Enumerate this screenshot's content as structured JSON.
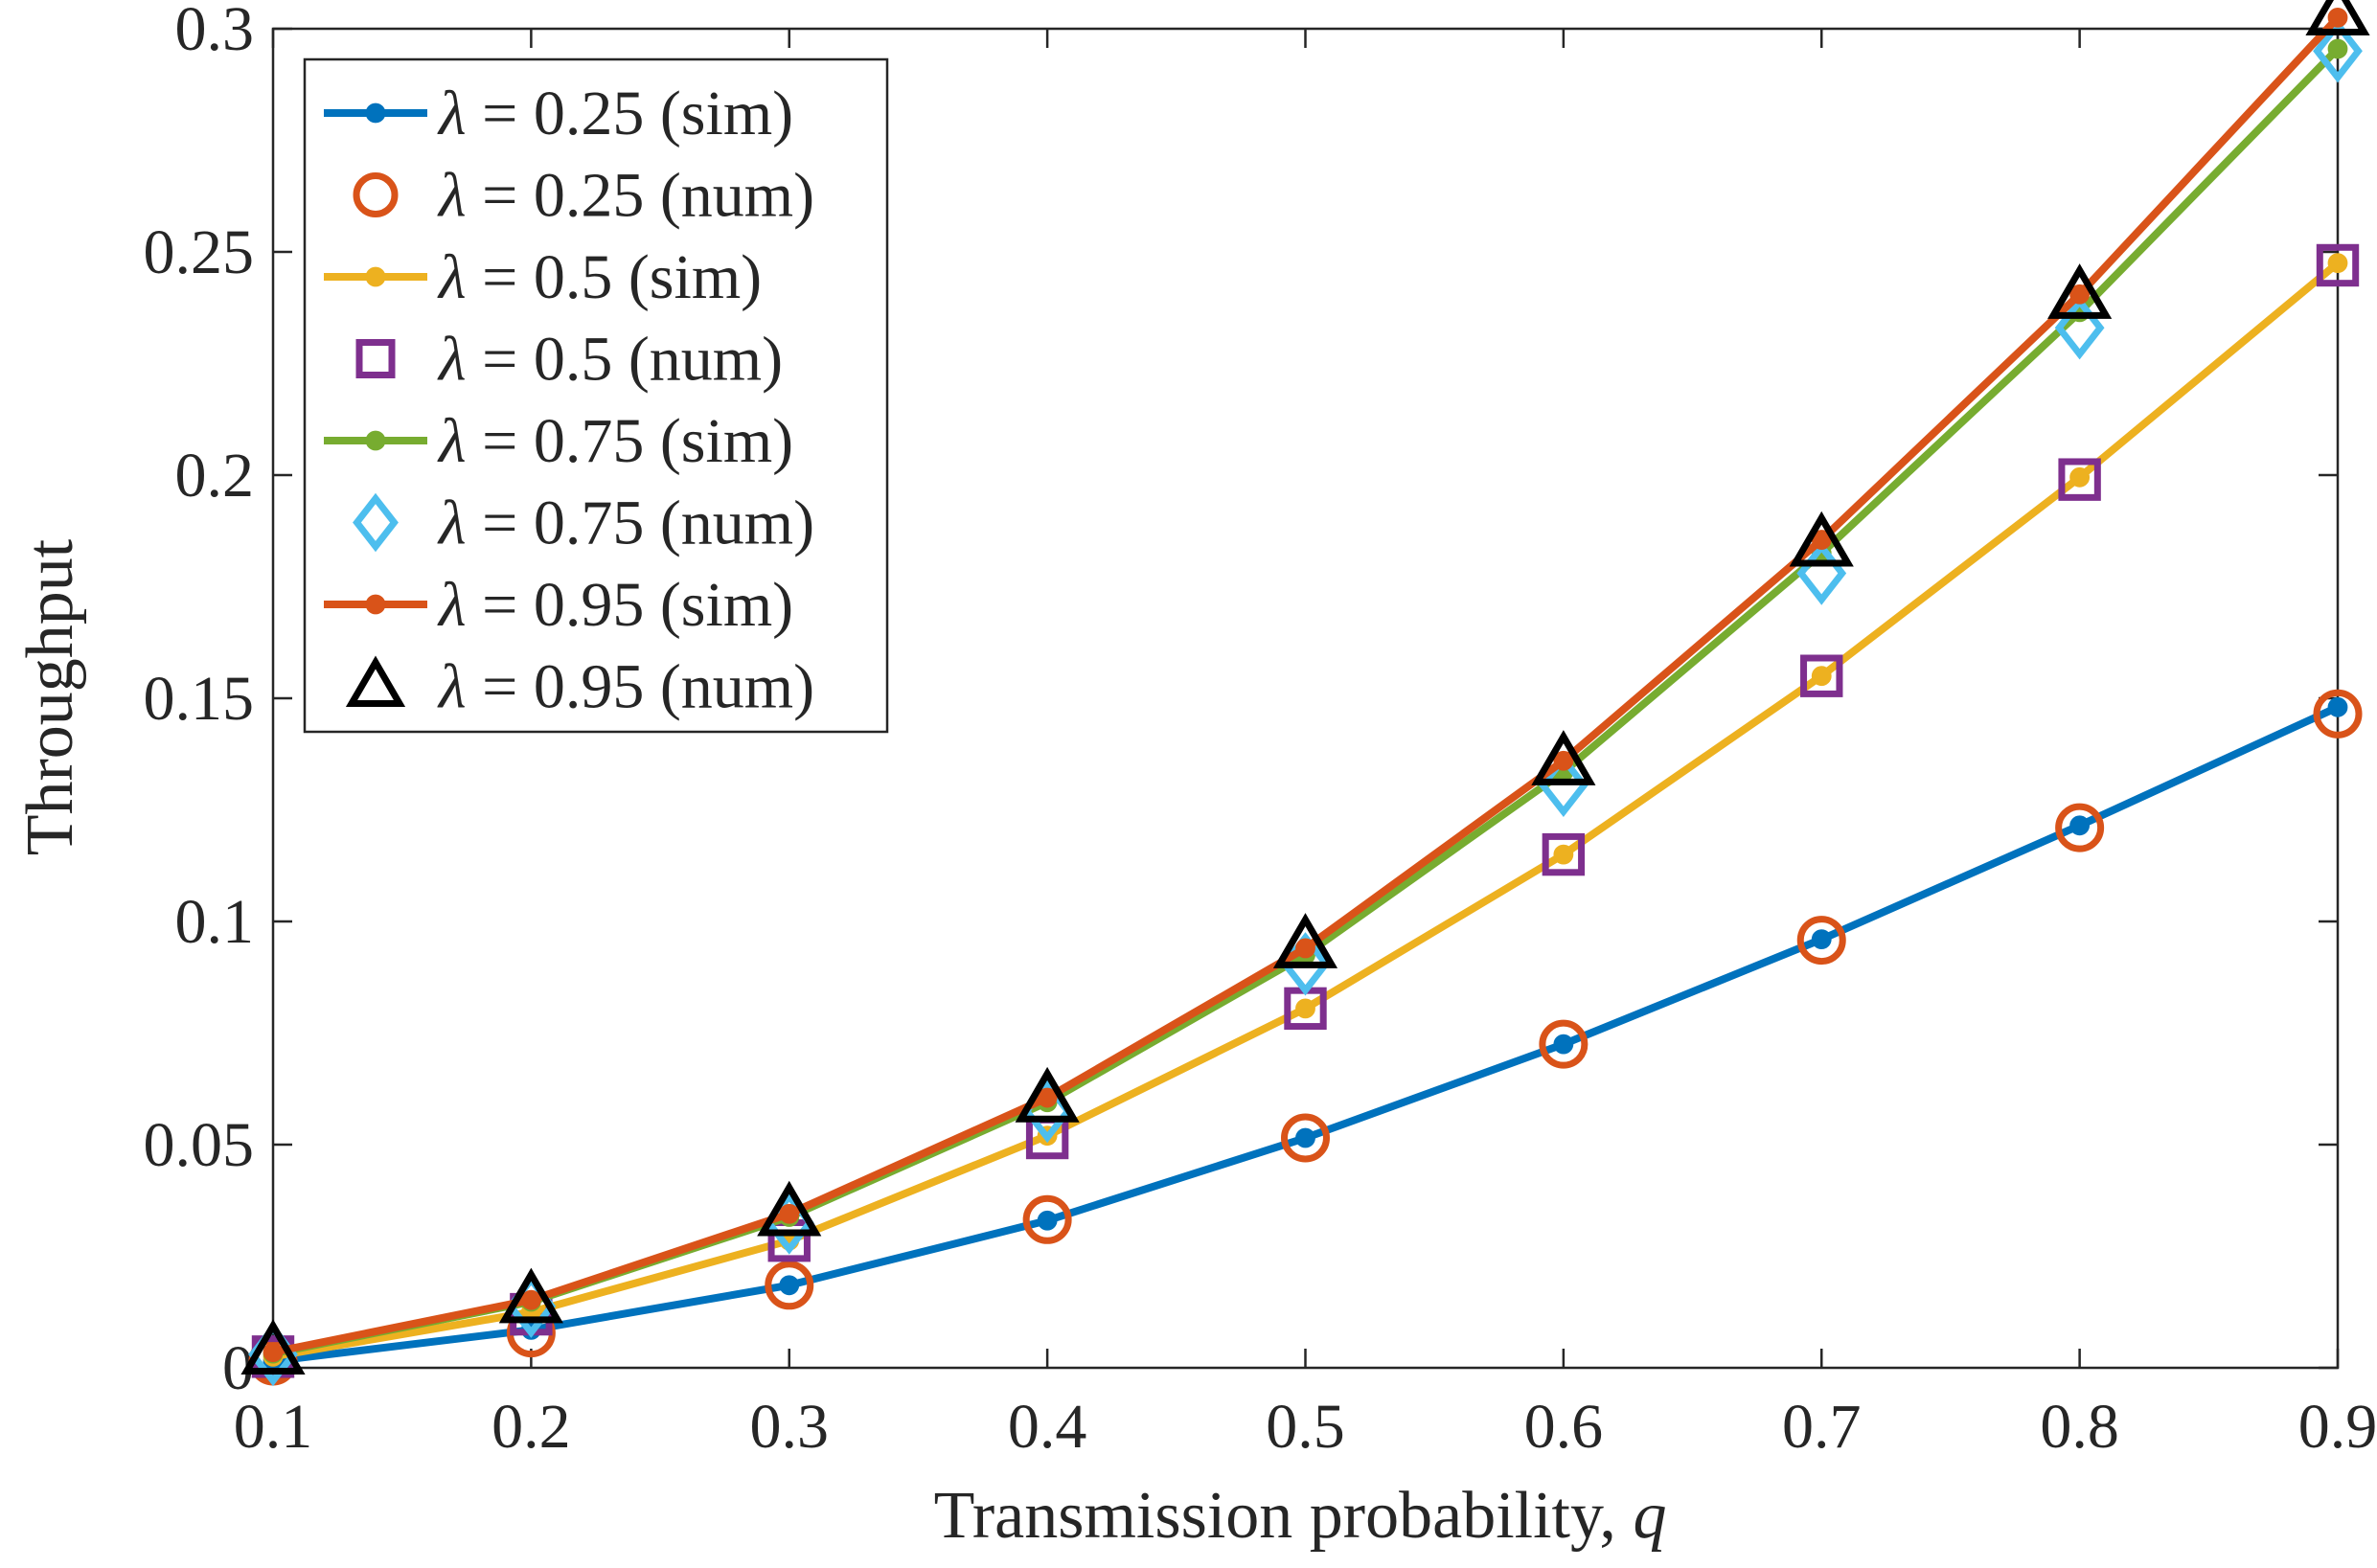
{
  "chart_data": {
    "type": "line",
    "xlabel": "Transmission probability, ",
    "xlabel_var": "q",
    "ylabel": "Throughput",
    "xlim": [
      0.1,
      0.9
    ],
    "ylim": [
      0,
      0.3
    ],
    "x": [
      0.1,
      0.2,
      0.3,
      0.4,
      0.5,
      0.6,
      0.7,
      0.8,
      0.9
    ],
    "xticks": [
      "0.1",
      "0.2",
      "0.3",
      "0.4",
      "0.5",
      "0.6",
      "0.7",
      "0.8",
      "0.9"
    ],
    "yticks": [
      "0",
      "0.05",
      "0.1",
      "0.15",
      "0.2",
      "0.25",
      "0.3"
    ],
    "ytick_values": [
      0,
      0.05,
      0.1,
      0.15,
      0.2,
      0.25,
      0.3
    ],
    "legend_location": "top-left",
    "series": [
      {
        "name": "λ = 0.25 (sim)",
        "lambda_symbol": "λ",
        "label_rest": " = 0.25 (sim)",
        "kind": "line",
        "marker": "dot",
        "color": "#0072BD",
        "values": [
          0.0015,
          0.0085,
          0.0185,
          0.033,
          0.0515,
          0.0725,
          0.096,
          0.1215,
          0.148
        ]
      },
      {
        "name": "λ = 0.25 (num)",
        "lambda_symbol": "λ",
        "label_rest": " = 0.25 (num)",
        "kind": "marker",
        "marker": "circle",
        "color": "#D95319",
        "values": [
          0.0015,
          0.0078,
          0.0185,
          0.0332,
          0.0515,
          0.0725,
          0.0958,
          0.121,
          0.1465
        ]
      },
      {
        "name": "λ = 0.5 (sim)",
        "lambda_symbol": "λ",
        "label_rest": " = 0.5 (sim)",
        "kind": "line",
        "marker": "dot",
        "color": "#EDB120",
        "values": [
          0.0025,
          0.0125,
          0.0285,
          0.052,
          0.0805,
          0.115,
          0.155,
          0.1995,
          0.2475
        ]
      },
      {
        "name": "λ = 0.5 (num)",
        "lambda_symbol": "λ",
        "label_rest": " = 0.5 (num)",
        "kind": "marker",
        "marker": "square",
        "color": "#7E2F8E",
        "values": [
          0.0025,
          0.012,
          0.0285,
          0.0515,
          0.0805,
          0.115,
          0.155,
          0.199,
          0.247
        ]
      },
      {
        "name": "λ = 0.75 (sim)",
        "lambda_symbol": "λ",
        "label_rest": " = 0.75 (sim)",
        "kind": "line",
        "marker": "dot",
        "color": "#77AC30",
        "values": [
          0.0032,
          0.0148,
          0.0338,
          0.0595,
          0.0925,
          0.1335,
          0.1825,
          0.2365,
          0.2955
        ]
      },
      {
        "name": "λ = 0.75 (num)",
        "lambda_symbol": "λ",
        "label_rest": " = 0.75 (num)",
        "kind": "marker",
        "marker": "diamond",
        "color": "#4DBEEE",
        "values": [
          0.003,
          0.0138,
          0.0325,
          0.0575,
          0.0905,
          0.1305,
          0.178,
          0.233,
          0.295
        ]
      },
      {
        "name": "λ = 0.95 (sim)",
        "lambda_symbol": "λ",
        "label_rest": " = 0.95 (sim)",
        "kind": "line",
        "marker": "dot",
        "color": "#D95319",
        "values": [
          0.0035,
          0.0152,
          0.0345,
          0.0605,
          0.094,
          0.136,
          0.1855,
          0.2405,
          0.3025
        ]
      },
      {
        "name": "λ = 0.95 (num)",
        "lambda_symbol": "λ",
        "label_rest": " = 0.95 (num)",
        "kind": "marker",
        "marker": "triangle",
        "color": "#000000",
        "values": [
          0.0035,
          0.015,
          0.0345,
          0.06,
          0.0945,
          0.1355,
          0.1845,
          0.24,
          0.3035
        ]
      }
    ]
  }
}
